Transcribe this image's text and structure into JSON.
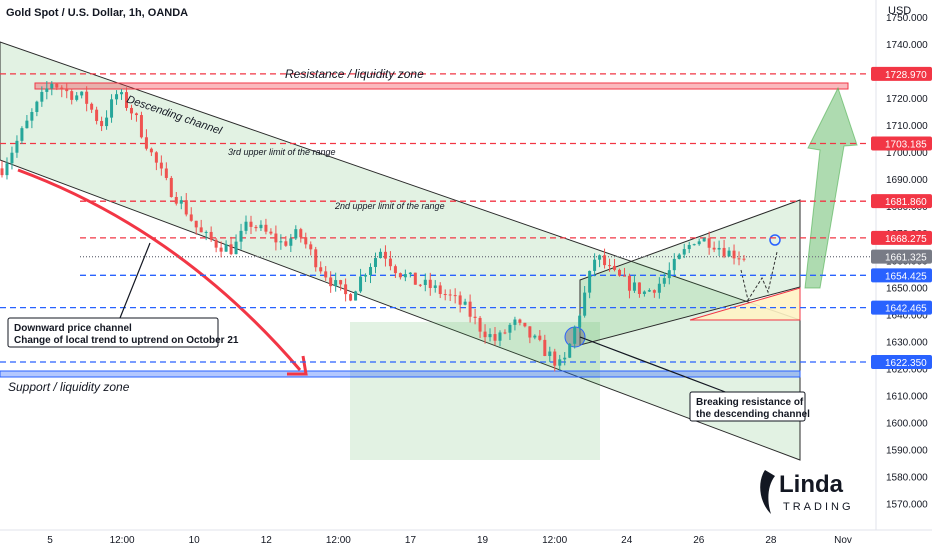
{
  "header": {
    "title": "Gold Spot / U.S. Dollar, 1h, OANDA"
  },
  "axis": {
    "currency": "USD"
  },
  "chart_data": {
    "type": "candlestick",
    "title": "Gold Spot / U.S. Dollar, 1h, OANDA",
    "ylabel": "USD",
    "ylim": [
      1565,
      1755
    ],
    "y_ticks": [
      1570,
      1580,
      1590,
      1600,
      1610,
      1620,
      1630,
      1640,
      1650,
      1660,
      1670,
      1680,
      1690,
      1700,
      1710,
      1720,
      1730,
      1740,
      1750
    ],
    "x_ticks": [
      "5",
      "12:00",
      "10",
      "12",
      "12:00",
      "17",
      "19",
      "12:00",
      "24",
      "26",
      "28",
      "Nov"
    ],
    "price_path": [
      [
        "5",
        1694
      ],
      [
        "5",
        1705
      ],
      [
        "5",
        1716
      ],
      [
        "5",
        1726
      ],
      [
        "5",
        1722
      ],
      [
        "12:00",
        1720
      ],
      [
        "12:00",
        1710
      ],
      [
        "12:00",
        1722
      ],
      [
        "12:00",
        1714
      ],
      [
        "10",
        1700
      ],
      [
        "10",
        1688
      ],
      [
        "10",
        1680
      ],
      [
        "10",
        1670
      ],
      [
        "10",
        1666
      ],
      [
        "12",
        1664
      ],
      [
        "12",
        1674
      ],
      [
        "12",
        1670
      ],
      [
        "12",
        1666
      ],
      [
        "12:00",
        1670
      ],
      [
        "12:00",
        1660
      ],
      [
        "12:00",
        1652
      ],
      [
        "17",
        1646
      ],
      [
        "17",
        1656
      ],
      [
        "17",
        1664
      ],
      [
        "17",
        1656
      ],
      [
        "17",
        1652
      ],
      [
        "17",
        1650
      ],
      [
        "19",
        1647
      ],
      [
        "19",
        1643
      ],
      [
        "19",
        1635
      ],
      [
        "12:00",
        1630
      ],
      [
        "12:00",
        1637
      ],
      [
        "12:00",
        1632
      ],
      [
        "12:00",
        1626
      ],
      [
        "12:00",
        1620
      ],
      [
        "24",
        1640
      ],
      [
        "24",
        1662
      ],
      [
        "24",
        1655
      ],
      [
        "24",
        1651
      ],
      [
        "24",
        1648
      ],
      [
        "26",
        1652
      ],
      [
        "26",
        1660
      ],
      [
        "26",
        1668
      ],
      [
        "26",
        1667
      ],
      [
        "26",
        1663
      ],
      [
        "26",
        1661.325
      ]
    ],
    "price_levels": [
      {
        "label": "1728.970",
        "value": 1728.97,
        "color": "#f23645"
      },
      {
        "label": "1703.185",
        "value": 1703.185,
        "color": "#f23645"
      },
      {
        "label": "1681.860",
        "value": 1681.86,
        "color": "#f23645"
      },
      {
        "label": "1668.275",
        "value": 1668.275,
        "color": "#f23645"
      },
      {
        "label": "1661.325",
        "value": 1661.325,
        "color": "#787b86"
      },
      {
        "label": "1654.425",
        "value": 1654.425,
        "color": "#2962ff"
      },
      {
        "label": "1642.465",
        "value": 1642.465,
        "color": "#2962ff"
      },
      {
        "label": "1622.350",
        "value": 1622.35,
        "color": "#2962ff"
      }
    ],
    "annotations": {
      "resistance_zone": "Resistance / liquidity zone",
      "support_zone": "Support / liquidity zone",
      "descending_channel": "Descending channel",
      "upper_limit_3": "3rd upper limit of the range",
      "upper_limit_2": "2nd upper limit of the range",
      "callout_left_line1": "Downward price channel",
      "callout_left_line2": "Change of local trend to uptrend on October 21",
      "callout_right_line1": "Breaking resistance of",
      "callout_right_line2": "the descending channel"
    },
    "grid": false
  },
  "branding": {
    "logo_text": "Linda",
    "logo_subtext": "TRADING"
  },
  "colors": {
    "up": "#26a69a",
    "down": "#ef5350",
    "resistance": "#f23645",
    "support": "#2962ff",
    "channel": "#4caf50"
  }
}
